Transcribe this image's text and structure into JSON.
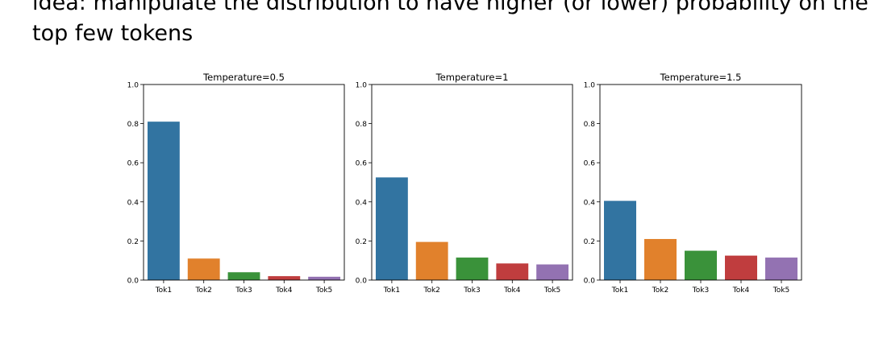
{
  "slide": {
    "line1": "idea: manipulate the distribution to have higher (or lower) probability on the",
    "line2": "top few tokens"
  },
  "colors": {
    "tok1": "#3274a1",
    "tok2": "#e1812c",
    "tok3": "#3a923a",
    "tok4": "#c03d3e",
    "tok5": "#9372b2"
  },
  "chart_data": [
    {
      "type": "bar",
      "title": "Temperature=0.5",
      "categories": [
        "Tok1",
        "Tok2",
        "Tok3",
        "Tok4",
        "Tok5"
      ],
      "values": [
        0.81,
        0.11,
        0.04,
        0.02,
        0.017
      ],
      "ylim": [
        0,
        1.0
      ],
      "yticks": [
        "0.0",
        "0.2",
        "0.4",
        "0.6",
        "0.8",
        "1.0"
      ],
      "xlabel": "",
      "ylabel": ""
    },
    {
      "type": "bar",
      "title": "Temperature=1",
      "categories": [
        "Tok1",
        "Tok2",
        "Tok3",
        "Tok4",
        "Tok5"
      ],
      "values": [
        0.525,
        0.195,
        0.115,
        0.085,
        0.08
      ],
      "ylim": [
        0,
        1.0
      ],
      "yticks": [
        "0.0",
        "0.2",
        "0.4",
        "0.6",
        "0.8",
        "1.0"
      ],
      "xlabel": "",
      "ylabel": ""
    },
    {
      "type": "bar",
      "title": "Temperature=1.5",
      "categories": [
        "Tok1",
        "Tok2",
        "Tok3",
        "Tok4",
        "Tok5"
      ],
      "values": [
        0.405,
        0.21,
        0.15,
        0.125,
        0.115
      ],
      "ylim": [
        0,
        1.0
      ],
      "yticks": [
        "0.0",
        "0.2",
        "0.4",
        "0.6",
        "0.8",
        "1.0"
      ],
      "xlabel": "",
      "ylabel": ""
    }
  ]
}
